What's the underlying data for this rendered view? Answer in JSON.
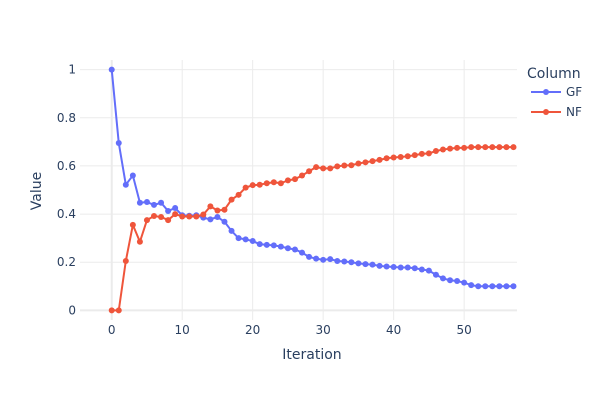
{
  "chart_data": {
    "type": "line",
    "xlabel": "Iteration",
    "ylabel": "Value",
    "xlim": [
      -4.5,
      57.5
    ],
    "ylim": [
      -0.04,
      1.04
    ],
    "x_ticks": [
      0,
      10,
      20,
      30,
      40,
      50
    ],
    "y_ticks": [
      0,
      0.2,
      0.4,
      0.6,
      0.8,
      1
    ],
    "x_tick_labels": [
      "0",
      "10",
      "20",
      "30",
      "40",
      "50"
    ],
    "y_tick_labels": [
      "0",
      "0.2",
      "0.4",
      "0.6",
      "0.8",
      "1"
    ],
    "grid": true,
    "legend": {
      "title": "Column",
      "placement": "top-right"
    },
    "x": [
      0,
      1,
      2,
      3,
      4,
      5,
      6,
      7,
      8,
      9,
      10,
      11,
      12,
      13,
      14,
      15,
      16,
      17,
      18,
      19,
      20,
      21,
      22,
      23,
      24,
      25,
      26,
      27,
      28,
      29,
      30,
      31,
      32,
      33,
      34,
      35,
      36,
      37,
      38,
      39,
      40,
      41,
      42,
      43,
      44,
      45,
      46,
      47,
      48,
      49,
      50,
      51,
      52,
      53,
      54,
      55,
      56,
      57
    ],
    "series": [
      {
        "name": "GF",
        "color": "#636efa",
        "values": [
          1.0,
          0.695,
          0.522,
          0.56,
          0.447,
          0.45,
          0.438,
          0.447,
          0.413,
          0.425,
          0.395,
          0.393,
          0.395,
          0.385,
          0.378,
          0.388,
          0.368,
          0.33,
          0.3,
          0.295,
          0.288,
          0.275,
          0.272,
          0.27,
          0.265,
          0.258,
          0.253,
          0.24,
          0.222,
          0.215,
          0.21,
          0.213,
          0.205,
          0.203,
          0.2,
          0.195,
          0.192,
          0.19,
          0.185,
          0.182,
          0.18,
          0.178,
          0.178,
          0.175,
          0.17,
          0.165,
          0.148,
          0.133,
          0.125,
          0.122,
          0.115,
          0.105,
          0.1,
          0.1,
          0.1,
          0.1,
          0.1,
          0.1
        ]
      },
      {
        "name": "NF",
        "color": "#ef553b",
        "values": [
          0.0,
          0.0,
          0.205,
          0.355,
          0.285,
          0.375,
          0.392,
          0.388,
          0.375,
          0.4,
          0.39,
          0.39,
          0.39,
          0.398,
          0.432,
          0.415,
          0.418,
          0.46,
          0.48,
          0.51,
          0.52,
          0.522,
          0.528,
          0.532,
          0.528,
          0.54,
          0.545,
          0.56,
          0.578,
          0.595,
          0.59,
          0.59,
          0.598,
          0.602,
          0.603,
          0.61,
          0.615,
          0.62,
          0.625,
          0.632,
          0.635,
          0.637,
          0.64,
          0.645,
          0.65,
          0.652,
          0.662,
          0.668,
          0.672,
          0.675,
          0.675,
          0.678,
          0.678,
          0.678,
          0.678,
          0.678,
          0.678,
          0.678
        ]
      }
    ]
  }
}
